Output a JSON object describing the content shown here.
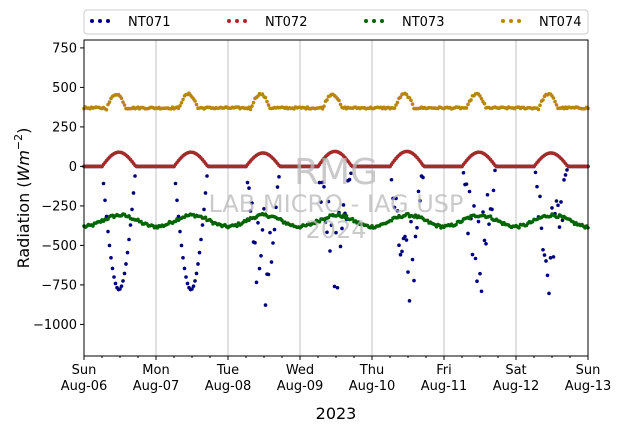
{
  "chart_data": {
    "type": "scatter",
    "ylabel_main": "Radiation (",
    "ylabel_unit": "Wm",
    "ylabel_exp": "−2",
    "ylabel_close": ")",
    "xlabel": "2023",
    "ylim": [
      -1200,
      800
    ],
    "yticks": [
      "750",
      "500",
      "250",
      "0",
      "−250",
      "−500",
      "−750",
      "−1000"
    ],
    "ytick_values": [
      750,
      500,
      250,
      0,
      -250,
      -500,
      -750,
      -1000
    ],
    "xlim_days": [
      0,
      7
    ],
    "xticks": [
      {
        "day": "Sun",
        "date": "Aug-06"
      },
      {
        "day": "Mon",
        "date": "Aug-07"
      },
      {
        "day": "Tue",
        "date": "Aug-08"
      },
      {
        "day": "Wed",
        "date": "Aug-09"
      },
      {
        "day": "Thu",
        "date": "Aug-10"
      },
      {
        "day": "Fri",
        "date": "Aug-11"
      },
      {
        "day": "Sat",
        "date": "Aug-12"
      },
      {
        "day": "Sun",
        "date": "Aug-13"
      }
    ],
    "grid": "vertical",
    "legend_position": "top",
    "series": [
      {
        "name": "NT071",
        "color": "#00007f",
        "baseline": 0,
        "daytime_min": [
          -780,
          -780,
          -840,
          -810,
          -870,
          -800,
          -810
        ],
        "scattered_days": [
          2,
          3,
          4,
          5,
          6
        ]
      },
      {
        "name": "NT072",
        "color": "#a52a2a",
        "baseline": 0,
        "daytime_peak": [
          90,
          90,
          85,
          95,
          95,
          90,
          85
        ]
      },
      {
        "name": "NT073",
        "color": "#006400",
        "daily_range": [
          -390,
          -300
        ]
      },
      {
        "name": "NT074",
        "color": "#b8860b",
        "daily_range": [
          350,
          470
        ]
      }
    ]
  },
  "watermark": {
    "line1": "RMG",
    "line2": "LAB MICRO - IAG USP",
    "line3": "2024"
  }
}
